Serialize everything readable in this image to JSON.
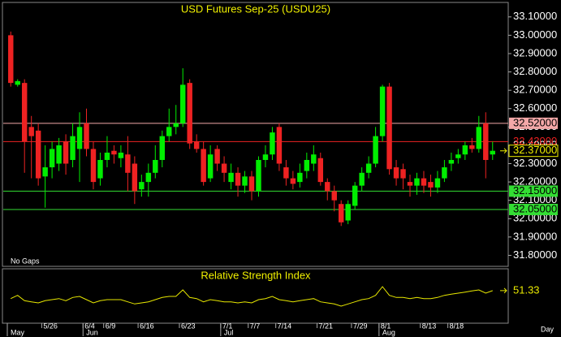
{
  "chart_data": {
    "type": "candlestick",
    "title": "USD Futures Sep-25 (USDU25)",
    "note": "No Gaps",
    "period": "Day",
    "categories": [
      null,
      null,
      null,
      null,
      null,
      "5/26",
      null,
      null,
      null,
      null,
      null,
      "6/4",
      null,
      null,
      "6/9",
      null,
      null,
      null,
      null,
      "6/16",
      null,
      null,
      null,
      null,
      null,
      "6/23",
      null,
      null,
      null,
      null,
      null,
      "7/1",
      null,
      null,
      null,
      "7/7",
      null,
      null,
      null,
      "7/14",
      null,
      null,
      null,
      null,
      null,
      "7/21",
      null,
      null,
      null,
      null,
      "7/29",
      null,
      null,
      null,
      "8/1",
      null,
      null,
      null,
      null,
      null,
      "8/13",
      null,
      null,
      null,
      "8/18",
      null,
      null,
      null,
      null,
      null,
      null
    ],
    "months": [
      "May",
      null,
      null,
      null,
      null,
      null,
      null,
      null,
      null,
      null,
      null,
      "Jun",
      null,
      null,
      null,
      null,
      null,
      null,
      null,
      null,
      null,
      null,
      null,
      null,
      null,
      null,
      null,
      null,
      null,
      null,
      null,
      "Jul",
      null,
      null,
      null,
      null,
      null,
      null,
      null,
      null,
      null,
      null,
      null,
      null,
      null,
      null,
      null,
      null,
      null,
      null,
      null,
      null,
      null,
      null,
      "Aug",
      null,
      null,
      null,
      null,
      null,
      null,
      null,
      null,
      null,
      null,
      null,
      null,
      null,
      null,
      null,
      null
    ],
    "open": [
      33.0,
      32.73,
      32.74,
      32.5,
      32.48,
      32.23,
      32.28,
      32.3,
      32.42,
      32.32,
      32.38,
      32.52,
      32.38,
      32.22,
      32.32,
      32.37,
      32.33,
      32.35,
      32.3,
      32.16,
      32.2,
      32.25,
      32.32,
      32.45,
      32.5,
      32.52,
      32.74,
      32.42,
      32.38,
      32.22,
      32.38,
      32.3,
      32.2,
      32.25,
      32.18,
      32.23,
      32.15,
      32.32,
      32.35,
      32.5,
      32.28,
      32.22,
      32.2,
      32.26,
      32.3,
      32.33,
      32.2,
      32.15,
      32.08,
      31.99,
      32.07,
      32.18,
      32.25,
      32.3,
      32.45,
      32.72,
      32.28,
      32.27,
      32.2,
      32.18,
      32.22,
      32.2,
      32.17,
      32.22,
      32.3,
      32.33,
      32.35,
      32.4,
      32.38,
      32.52,
      32.35
    ],
    "high": [
      33.02,
      32.76,
      32.76,
      32.56,
      32.52,
      32.4,
      32.42,
      32.44,
      32.46,
      32.52,
      32.58,
      32.6,
      32.42,
      32.36,
      32.45,
      32.4,
      32.4,
      32.45,
      32.34,
      32.24,
      32.3,
      32.4,
      32.48,
      32.6,
      32.62,
      32.82,
      32.76,
      32.46,
      32.42,
      32.4,
      32.4,
      32.34,
      32.3,
      32.28,
      32.26,
      32.26,
      32.34,
      32.4,
      32.5,
      32.52,
      32.32,
      32.26,
      32.3,
      32.36,
      32.4,
      32.36,
      32.22,
      32.18,
      32.1,
      32.1,
      32.2,
      32.28,
      32.34,
      32.5,
      32.73,
      32.74,
      32.32,
      32.3,
      32.24,
      32.25,
      32.26,
      32.24,
      32.26,
      32.32,
      32.36,
      32.38,
      32.42,
      32.44,
      32.56,
      32.58,
      32.42
    ],
    "low": [
      32.72,
      32.72,
      32.25,
      32.22,
      32.18,
      32.06,
      32.22,
      32.26,
      32.24,
      32.28,
      32.2,
      32.34,
      32.16,
      32.18,
      32.28,
      32.3,
      32.28,
      32.15,
      32.08,
      32.12,
      32.12,
      32.22,
      32.28,
      32.42,
      32.46,
      32.5,
      32.38,
      32.36,
      32.18,
      32.2,
      32.26,
      32.2,
      32.16,
      32.12,
      32.14,
      32.1,
      32.12,
      32.28,
      32.32,
      32.26,
      32.18,
      32.16,
      32.17,
      32.22,
      32.26,
      32.18,
      32.1,
      32.04,
      31.96,
      31.97,
      32.05,
      32.15,
      32.22,
      32.28,
      32.42,
      32.24,
      32.18,
      32.16,
      32.12,
      32.13,
      32.14,
      32.12,
      32.14,
      32.2,
      32.26,
      32.3,
      32.32,
      32.36,
      32.36,
      32.22,
      32.32
    ],
    "close": [
      32.74,
      32.75,
      32.42,
      32.45,
      32.22,
      32.28,
      32.38,
      32.4,
      32.3,
      32.45,
      32.5,
      32.38,
      32.2,
      32.32,
      32.36,
      32.35,
      32.36,
      32.25,
      32.15,
      32.2,
      32.25,
      32.32,
      32.45,
      32.5,
      32.52,
      32.73,
      32.41,
      32.38,
      32.2,
      32.35,
      32.3,
      32.25,
      32.25,
      32.18,
      32.23,
      32.15,
      32.32,
      32.35,
      32.47,
      32.3,
      32.22,
      32.19,
      32.25,
      32.32,
      32.35,
      32.2,
      32.15,
      32.1,
      31.98,
      32.08,
      32.18,
      32.25,
      32.3,
      32.45,
      32.72,
      32.27,
      32.22,
      32.22,
      32.18,
      32.22,
      32.18,
      32.17,
      32.22,
      32.28,
      32.32,
      32.35,
      32.4,
      32.38,
      32.5,
      32.32,
      32.37
    ],
    "up_color": "#00ee00",
    "down_color": "#ee2222",
    "ylim": [
      31.74,
      33.17
    ],
    "yticks": [
      {
        "value": 33.1,
        "label": "33.10000"
      },
      {
        "value": 33.0,
        "label": "33.00000"
      },
      {
        "value": 32.9,
        "label": "32.90000"
      },
      {
        "value": 32.8,
        "label": "32.80000"
      },
      {
        "value": 32.7,
        "label": "32.70000"
      },
      {
        "value": 32.6,
        "label": "32.60000"
      },
      {
        "value": 32.5,
        "label": "32.50000"
      },
      {
        "value": 32.4,
        "label": "32.40000"
      },
      {
        "value": 32.3,
        "label": "32.30000"
      },
      {
        "value": 32.2,
        "label": "32.20000"
      },
      {
        "value": 32.1,
        "label": "32.10000"
      },
      {
        "value": 32.0,
        "label": "32.00000"
      },
      {
        "value": 31.9,
        "label": "31.90000"
      },
      {
        "value": 31.8,
        "label": "31.80000"
      }
    ],
    "price_lines": [
      {
        "value": 32.52,
        "label": "32.52000",
        "color": "#f4a8a8",
        "boxed": true
      },
      {
        "value": 32.42,
        "label": "32.42000",
        "color": "#ee2222",
        "boxed": false
      },
      {
        "value": 32.15,
        "label": "32.15000",
        "color": "#33dd33",
        "boxed": true
      },
      {
        "value": 32.05,
        "label": "32.05000",
        "color": "#33dd33",
        "boxed": true
      }
    ],
    "last_price": {
      "value": 32.37,
      "label": "32.37000",
      "color": "#f0f000"
    },
    "rsi": {
      "title": "Relative Strength Index",
      "color": "#e8e800",
      "ylim": [
        25,
        70
      ],
      "values": [
        44,
        47,
        42,
        41,
        40,
        42,
        43,
        44,
        42,
        45,
        46,
        43,
        40,
        42,
        43,
        43,
        43,
        41,
        39,
        40,
        41,
        43,
        45,
        46,
        46,
        52,
        45,
        44,
        41,
        43,
        42,
        41,
        41,
        40,
        41,
        40,
        43,
        44,
        46,
        43,
        42,
        41,
        42,
        43,
        44,
        41,
        40,
        39,
        37,
        39,
        41,
        43,
        44,
        47,
        55,
        47,
        45,
        45,
        44,
        45,
        44,
        44,
        45,
        47,
        48,
        49,
        50,
        51,
        52,
        49,
        51.33
      ]
    }
  }
}
